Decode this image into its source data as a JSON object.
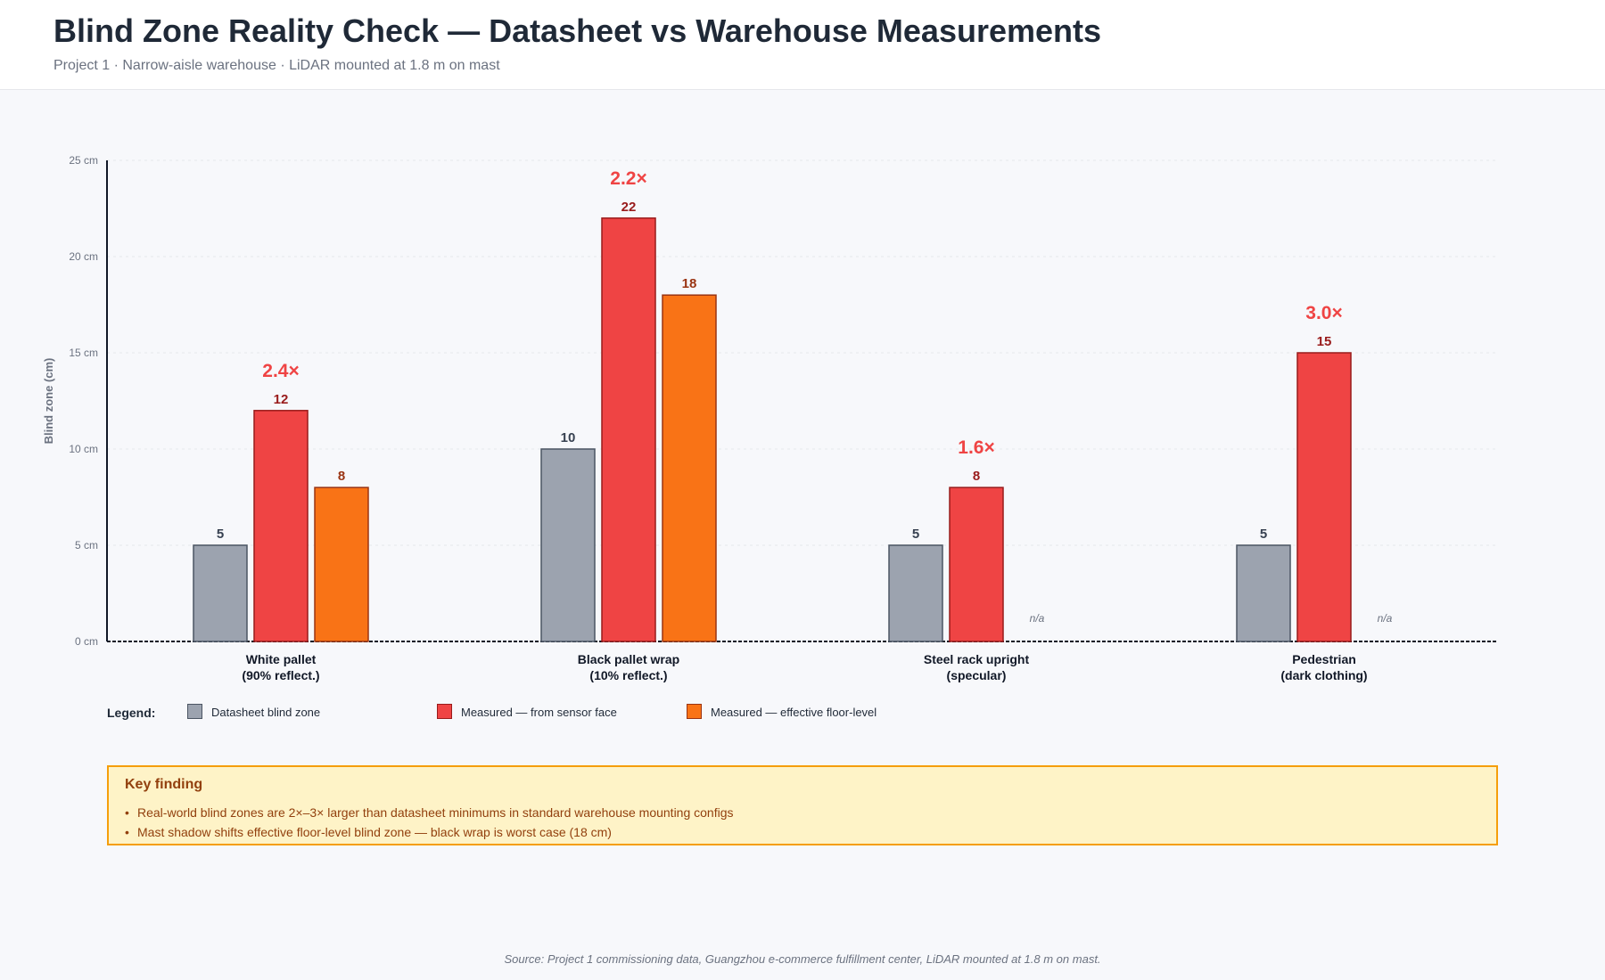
{
  "header": {
    "title": "Blind Zone Reality Check — Datasheet vs Warehouse Measurements",
    "subtitle": "Project 1 · Narrow-aisle warehouse · LiDAR mounted at 1.8 m on mast"
  },
  "chart_data": {
    "type": "bar",
    "ylabel": "Blind zone (cm)",
    "ylim": [
      0,
      25
    ],
    "yticks": [
      0,
      5,
      10,
      15,
      20,
      25
    ],
    "ytick_suffix": " cm",
    "grid": true,
    "categories": [
      [
        "White pallet",
        "(90% reflect.)"
      ],
      [
        "Black pallet wrap",
        "(10% reflect.)"
      ],
      [
        "Steel rack upright",
        "(specular)"
      ],
      [
        "Pedestrian",
        "(dark clothing)"
      ]
    ],
    "series": [
      {
        "name": "Datasheet blind zone",
        "color": "#9ca3af",
        "stroke": "#4b5563",
        "label_color": "#374151",
        "values": [
          5,
          10,
          5,
          5
        ]
      },
      {
        "name": "Measured — from sensor face",
        "color": "#ef4444",
        "stroke": "#991b1b",
        "label_color": "#991b1b",
        "values": [
          12,
          22,
          8,
          15
        ]
      },
      {
        "name": "Measured — effective floor-level",
        "color": "#f97316",
        "stroke": "#9a3412",
        "label_color": "#9a3412",
        "values": [
          8,
          18,
          null,
          null
        ]
      }
    ],
    "missing_label": "n/a",
    "ratios": [
      "2.4×",
      "2.2×",
      "1.6×",
      "3.0×"
    ],
    "ratio_color": "#ef4444"
  },
  "legend": {
    "title": "Legend:",
    "items": [
      {
        "label": "Datasheet blind zone",
        "color": "#9ca3af",
        "stroke": "#4b5563"
      },
      {
        "label": "Measured — from sensor face",
        "color": "#ef4444",
        "stroke": "#991b1b"
      },
      {
        "label": "Measured — effective floor-level",
        "color": "#f97316",
        "stroke": "#9a3412"
      }
    ]
  },
  "finding": {
    "title": "Key finding",
    "points": [
      "Real-world blind zones are 2×–3× larger than datasheet minimums in standard warehouse mounting configs",
      "Mast shadow shifts effective floor-level blind zone — black wrap is worst case (18 cm)"
    ]
  },
  "source": "Source: Project 1 commissioning data, Guangzhou e-commerce fulfillment center, LiDAR mounted at 1.8 m on mast."
}
